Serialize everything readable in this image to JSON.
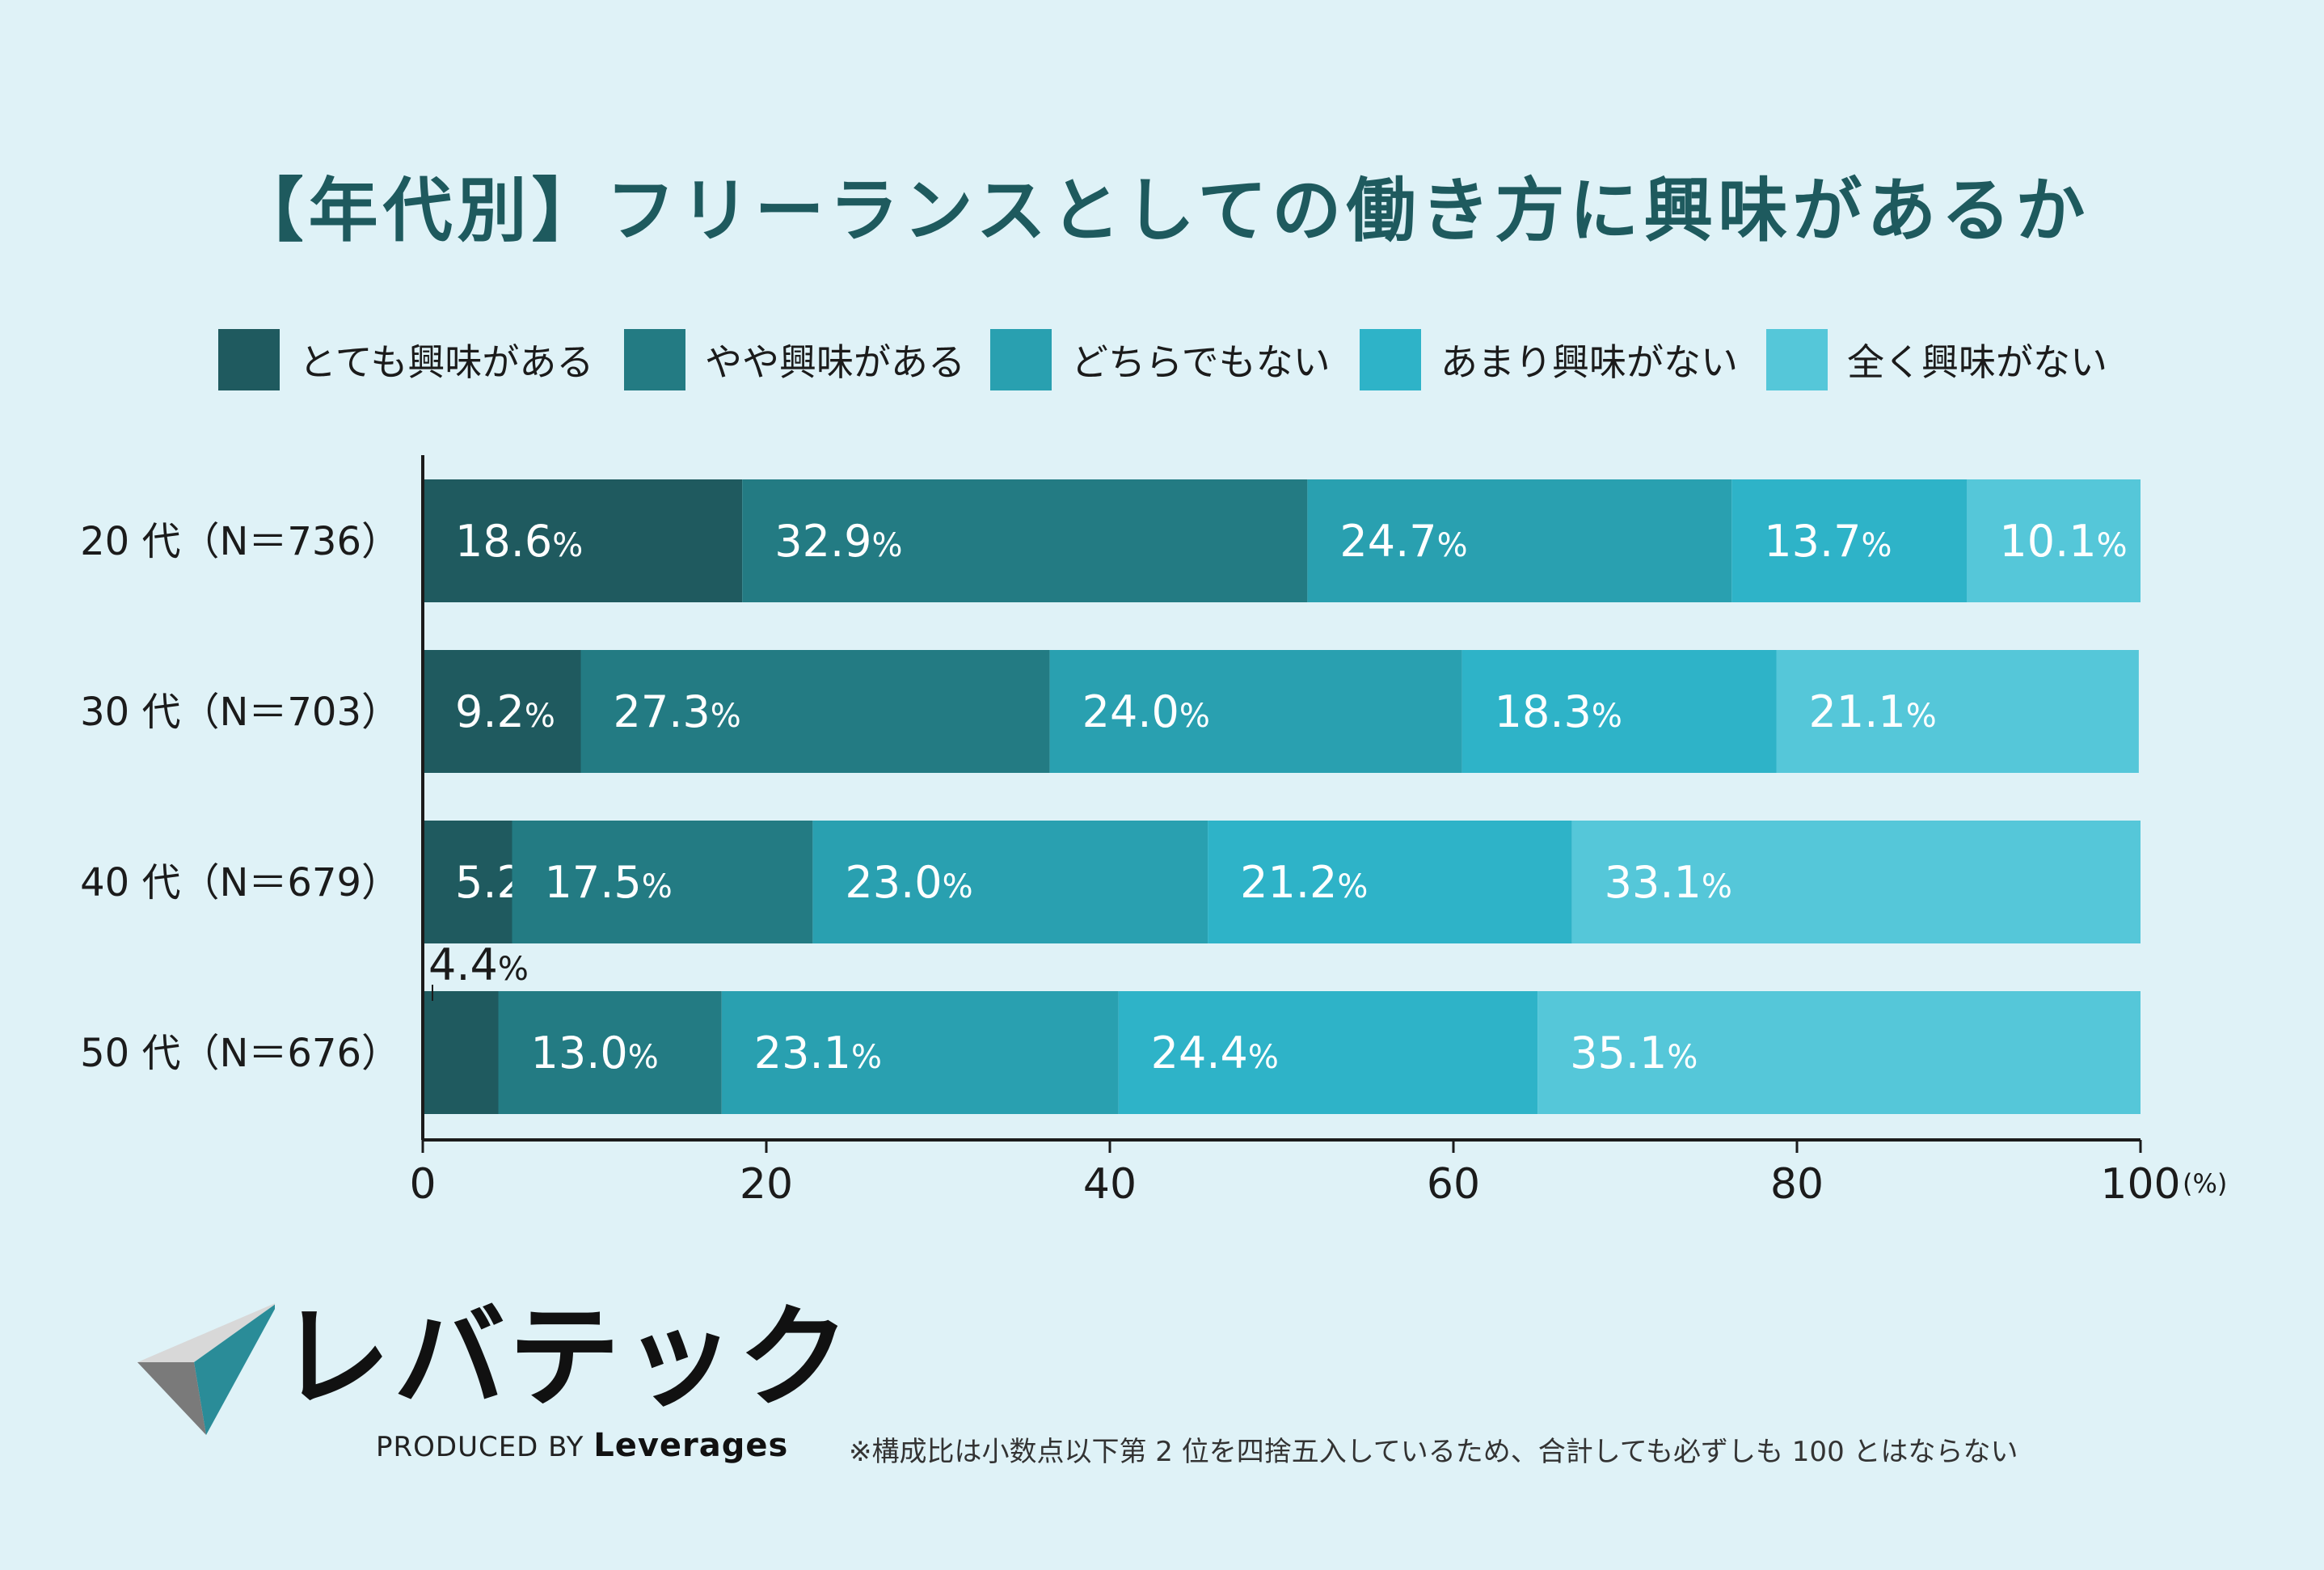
{
  "title": "【年代別】フリーランスとしての働き方に興味があるか",
  "colors": {
    "background": "#dff2f7",
    "title": "#1e5a5e",
    "series": [
      "#1f5a5f",
      "#237b83",
      "#29a0b0",
      "#2eb3c8",
      "#55c7d9"
    ]
  },
  "chart_data": {
    "type": "bar",
    "orientation": "horizontal",
    "stacked": true,
    "categories": [
      "20 代（N＝736）",
      "30 代（N＝703）",
      "40 代（N＝679）",
      "50 代（N＝676）"
    ],
    "series": [
      {
        "name": "とても興味がある",
        "values": [
          18.6,
          9.2,
          5.2,
          4.4
        ]
      },
      {
        "name": "やや興味がある",
        "values": [
          32.9,
          27.3,
          17.5,
          13.0
        ]
      },
      {
        "name": "どちらでもない",
        "values": [
          24.7,
          24.0,
          23.0,
          23.1
        ]
      },
      {
        "name": "あまり興味がない",
        "values": [
          13.7,
          18.3,
          21.2,
          24.4
        ]
      },
      {
        "name": "全く興味がない",
        "values": [
          10.1,
          21.1,
          33.1,
          35.1
        ]
      }
    ],
    "xlim": [
      0,
      100
    ],
    "xticks": [
      "0",
      "20",
      "40",
      "60",
      "80",
      "100"
    ],
    "xunit": "(%)",
    "value_suffix": "%",
    "legend_position": "top"
  },
  "footnote": "※構成比は小数点以下第 2 位を四捨五入しているため、合計しても必ずしも 100 とはならない",
  "logo": {
    "name": "レバテック",
    "produced_by": "PRODUCED BY",
    "company": "Leverages"
  }
}
